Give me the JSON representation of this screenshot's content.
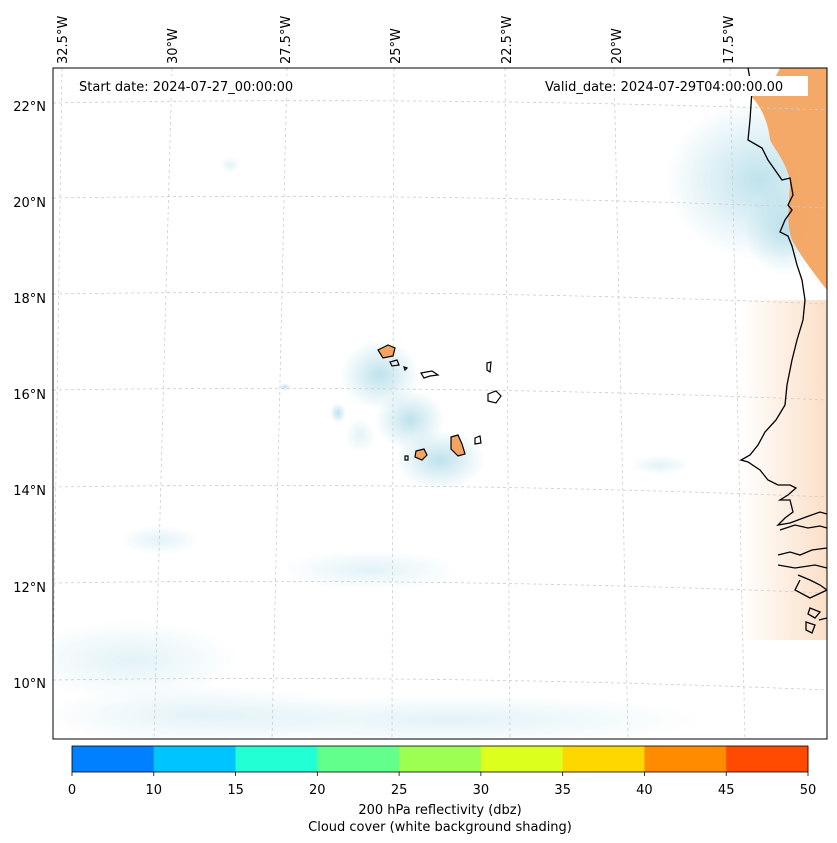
{
  "header": {
    "start_date": "Start date: 2024-07-27_00:00:00",
    "valid_date": "Valid_date: 2024-07-29T04:00:00.00"
  },
  "axes": {
    "lon_labels": [
      "32.5°W",
      "30°W",
      "27.5°W",
      "25°W",
      "22.5°W",
      "20°W",
      "17.5°W"
    ],
    "lat_labels": [
      "22°N",
      "20°N",
      "18°N",
      "16°N",
      "14°N",
      "12°N",
      "10°N"
    ]
  },
  "colorbar": {
    "ticks": [
      "0",
      "10",
      "15",
      "20",
      "25",
      "30",
      "35",
      "40",
      "45",
      "50"
    ],
    "colors": [
      "#0080ff",
      "#00c4ff",
      "#22ffd4",
      "#63ff8c",
      "#9cff52",
      "#dcff1e",
      "#ffd700",
      "#ff8c00",
      "#ff4a00"
    ],
    "label_line1": "200 hPa reflectivity (dbz)",
    "label_line2": "Cloud cover (white background shading)"
  },
  "colors": {
    "land_fill": "#f4a460",
    "cloud": "#add8e6",
    "coast": "#000000",
    "grid": "#c8c8c8"
  }
}
